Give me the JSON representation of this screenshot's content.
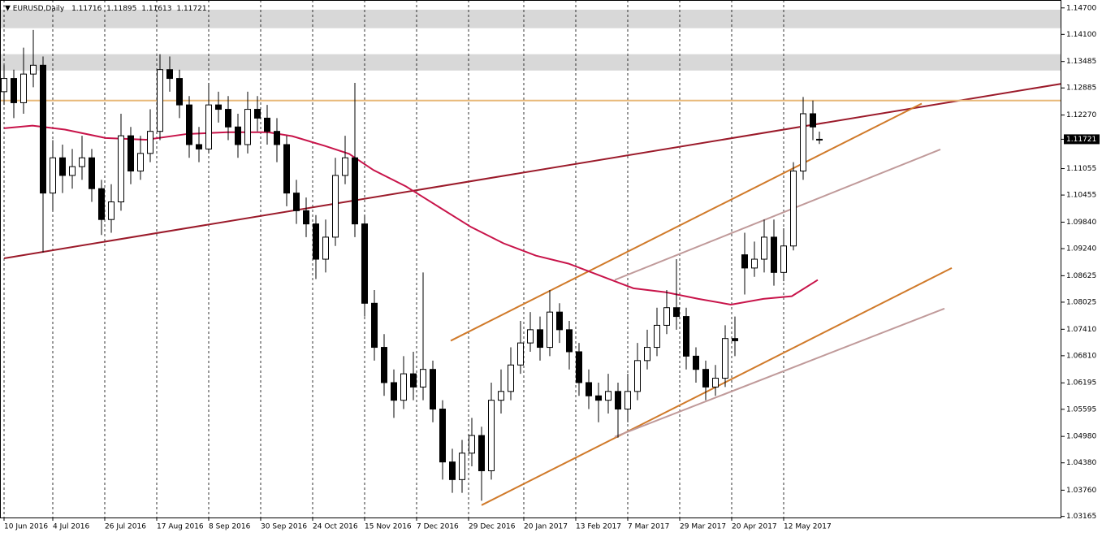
{
  "chart_data": {
    "type": "candlestick",
    "symbol": "EURUSD,Daily",
    "xlim": [
      -1.25,
      325.5
    ],
    "ylim": [
      1.0314,
      1.1488
    ],
    "xticks": [
      {
        "value": 0,
        "label": "10 Jun 2016"
      },
      {
        "value": 15,
        "label": "4 Jul 2016"
      },
      {
        "value": 31,
        "label": "26 Jul 2016"
      },
      {
        "value": 47,
        "label": "17 Aug 2016"
      },
      {
        "value": 63,
        "label": "8 Sep 2016"
      },
      {
        "value": 79,
        "label": "30 Sep 2016"
      },
      {
        "value": 95,
        "label": "24 Oct 2016"
      },
      {
        "value": 111,
        "label": "15 Nov 2016"
      },
      {
        "value": 127,
        "label": "7 Dec 2016"
      },
      {
        "value": 143,
        "label": "29 Dec 2016"
      },
      {
        "value": 160,
        "label": "20 Jan 2017"
      },
      {
        "value": 176,
        "label": "13 Feb 2017"
      },
      {
        "value": 192,
        "label": "7 Mar 2017"
      },
      {
        "value": 208,
        "label": "29 Mar 2017"
      },
      {
        "value": 224,
        "label": "20 Apr 2017"
      },
      {
        "value": 240,
        "label": "12 May 2017"
      }
    ],
    "yticks": [
      {
        "value": 1.147,
        "label": "1.14700"
      },
      {
        "value": 1.141,
        "label": "1.14100"
      },
      {
        "value": 1.13485,
        "label": "1.13485"
      },
      {
        "value": 1.12885,
        "label": "1.12885"
      },
      {
        "value": 1.1227,
        "label": "1.12270"
      },
      {
        "value": 1.11055,
        "label": "1.11055"
      },
      {
        "value": 1.10455,
        "label": "1.10455"
      },
      {
        "value": 1.0984,
        "label": "1.09840"
      },
      {
        "value": 1.0924,
        "label": "1.09240"
      },
      {
        "value": 1.08625,
        "label": "1.08625"
      },
      {
        "value": 1.08025,
        "label": "1.08025"
      },
      {
        "value": 1.0741,
        "label": "1.07410"
      },
      {
        "value": 1.0681,
        "label": "1.06810"
      },
      {
        "value": 1.06195,
        "label": "1.06195"
      },
      {
        "value": 1.05595,
        "label": "1.05595"
      },
      {
        "value": 1.0498,
        "label": "1.04980"
      },
      {
        "value": 1.0438,
        "label": "1.04380"
      },
      {
        "value": 1.0376,
        "label": "1.03760"
      },
      {
        "value": 1.03165,
        "label": "1.03165"
      }
    ],
    "current": {
      "value": 1.11721,
      "label": "1.11721"
    },
    "grid": true,
    "candles": {
      "x": [
        0,
        3,
        6,
        9,
        12,
        15,
        18,
        21,
        24,
        27,
        30,
        33,
        36,
        39,
        42,
        45,
        48,
        51,
        54,
        57,
        60,
        63,
        66,
        69,
        72,
        75,
        78,
        81,
        84,
        87,
        90,
        93,
        96,
        99,
        102,
        105,
        108,
        111,
        114,
        117,
        120,
        123,
        126,
        129,
        132,
        135,
        138,
        141,
        144,
        147,
        150,
        153,
        156,
        159,
        162,
        165,
        168,
        171,
        174,
        177,
        180,
        183,
        186,
        189,
        192,
        195,
        198,
        201,
        204,
        207,
        210,
        213,
        216,
        219,
        222,
        225,
        228,
        231,
        234,
        237,
        240,
        243,
        246,
        249,
        251
      ],
      "open": [
        1.128,
        1.131,
        1.1255,
        1.132,
        1.134,
        1.105,
        1.113,
        1.109,
        1.111,
        1.113,
        1.106,
        1.099,
        1.103,
        1.118,
        1.11,
        1.114,
        1.119,
        1.133,
        1.131,
        1.125,
        1.116,
        1.115,
        1.125,
        1.124,
        1.12,
        1.116,
        1.124,
        1.122,
        1.119,
        1.116,
        1.105,
        1.101,
        1.098,
        1.09,
        1.095,
        1.109,
        1.113,
        1.098,
        1.08,
        1.07,
        1.062,
        1.058,
        1.064,
        1.061,
        1.065,
        1.056,
        1.044,
        1.04,
        1.046,
        1.05,
        1.042,
        1.058,
        1.06,
        1.066,
        1.071,
        1.074,
        1.07,
        1.078,
        1.074,
        1.069,
        1.062,
        1.059,
        1.058,
        1.06,
        1.056,
        1.06,
        1.067,
        1.07,
        1.075,
        1.079,
        1.077,
        1.068,
        1.065,
        1.061,
        1.063,
        1.072,
        1.091,
        1.088,
        1.09,
        1.095,
        1.087,
        1.093,
        1.11,
        1.123,
        1.11716
      ],
      "high": [
        1.134,
        1.133,
        1.138,
        1.142,
        1.136,
        1.117,
        1.116,
        1.115,
        1.118,
        1.115,
        1.108,
        1.107,
        1.123,
        1.12,
        1.118,
        1.124,
        1.1365,
        1.136,
        1.133,
        1.127,
        1.12,
        1.13,
        1.128,
        1.127,
        1.123,
        1.128,
        1.127,
        1.125,
        1.122,
        1.118,
        1.108,
        1.104,
        1.1,
        1.099,
        1.113,
        1.118,
        1.13,
        1.1,
        1.083,
        1.073,
        1.065,
        1.068,
        1.069,
        1.087,
        1.067,
        1.058,
        1.047,
        1.049,
        1.054,
        1.052,
        1.062,
        1.065,
        1.07,
        1.076,
        1.078,
        1.077,
        1.083,
        1.08,
        1.076,
        1.071,
        1.065,
        1.062,
        1.064,
        1.062,
        1.064,
        1.071,
        1.074,
        1.079,
        1.083,
        1.09,
        1.079,
        1.07,
        1.067,
        1.066,
        1.075,
        1.077,
        1.096,
        1.094,
        1.099,
        1.099,
        1.097,
        1.112,
        1.1268,
        1.126,
        1.11895
      ],
      "low": [
        1.125,
        1.122,
        1.123,
        1.129,
        1.0915,
        1.101,
        1.105,
        1.106,
        1.108,
        1.103,
        1.0955,
        1.096,
        1.101,
        1.107,
        1.108,
        1.112,
        1.117,
        1.128,
        1.122,
        1.113,
        1.112,
        1.114,
        1.121,
        1.117,
        1.113,
        1.114,
        1.119,
        1.116,
        1.112,
        1.102,
        1.098,
        1.095,
        1.0855,
        1.087,
        1.093,
        1.107,
        1.095,
        1.077,
        1.067,
        1.059,
        1.054,
        1.056,
        1.058,
        1.058,
        1.053,
        1.04,
        1.037,
        1.037,
        1.043,
        1.0352,
        1.04,
        1.055,
        1.058,
        1.064,
        1.069,
        1.067,
        1.068,
        1.071,
        1.065,
        1.059,
        1.056,
        1.053,
        1.055,
        1.0495,
        1.053,
        1.058,
        1.065,
        1.068,
        1.073,
        1.074,
        1.065,
        1.062,
        1.058,
        1.059,
        1.061,
        1.068,
        1.082,
        1.086,
        1.087,
        1.084,
        1.085,
        1.092,
        1.108,
        1.117,
        1.11613
      ],
      "close": [
        1.131,
        1.1255,
        1.132,
        1.134,
        1.105,
        1.113,
        1.109,
        1.111,
        1.113,
        1.106,
        1.099,
        1.103,
        1.118,
        1.11,
        1.114,
        1.119,
        1.133,
        1.131,
        1.125,
        1.116,
        1.115,
        1.125,
        1.124,
        1.12,
        1.116,
        1.124,
        1.122,
        1.119,
        1.116,
        1.105,
        1.101,
        1.098,
        1.09,
        1.095,
        1.109,
        1.113,
        1.098,
        1.08,
        1.07,
        1.062,
        1.058,
        1.064,
        1.061,
        1.065,
        1.056,
        1.044,
        1.04,
        1.046,
        1.05,
        1.042,
        1.058,
        1.06,
        1.066,
        1.071,
        1.074,
        1.07,
        1.078,
        1.074,
        1.069,
        1.062,
        1.059,
        1.058,
        1.06,
        1.056,
        1.06,
        1.067,
        1.07,
        1.075,
        1.079,
        1.077,
        1.068,
        1.065,
        1.061,
        1.063,
        1.072,
        1.0715,
        1.088,
        1.09,
        1.095,
        1.087,
        1.093,
        1.11,
        1.123,
        1.12,
        1.11721
      ]
    },
    "moving_average": {
      "color": "#c8144a",
      "x": [
        0,
        8.75,
        18.75,
        31.25,
        43.75,
        56.25,
        68.75,
        81.25,
        88.75,
        98.75,
        106.25,
        113.75,
        123.75,
        133.75,
        143.75,
        153.75,
        163.75,
        173.75,
        183.75,
        193.75,
        203.75,
        213.75,
        223.75,
        233.75,
        242.5,
        250.5
      ],
      "values": [
        1.1197,
        1.1203,
        1.1194,
        1.1175,
        1.1171,
        1.1184,
        1.1188,
        1.1188,
        1.1179,
        1.1157,
        1.1139,
        1.1102,
        1.1065,
        1.1019,
        1.0973,
        1.0936,
        1.0908,
        1.089,
        1.0862,
        1.0834,
        1.0825,
        1.081,
        1.0797,
        1.081,
        1.0816,
        1.0853
      ]
    },
    "trendlines": [
      {
        "color": "#9b1a2a",
        "x": [
          0,
          325.5
        ],
        "values": [
          1.0902,
          1.1298
        ]
      },
      {
        "color": "#d07a2a",
        "x": [
          137.5,
          282.5
        ],
        "values": [
          1.0715,
          1.1253
        ]
      },
      {
        "color": "#d07a2a",
        "x": [
          147,
          291.75
        ],
        "values": [
          1.0342,
          1.088
        ]
      },
      {
        "color": "#c09a9a",
        "x": [
          188,
          288.25
        ],
        "values": [
          1.0853,
          1.1149
        ]
      },
      {
        "color": "#c09a9a",
        "x": [
          188,
          289.5
        ],
        "values": [
          1.0497,
          1.0788
        ]
      },
      {
        "color": "#e8b878",
        "x": [
          -1.25,
          325.5
        ],
        "values": [
          1.126,
          1.126
        ]
      }
    ],
    "zones": [
      {
        "color": "#d8d8d8",
        "values": [
          1.1424,
          1.1466
        ]
      },
      {
        "color": "#d8d8d8",
        "values": [
          1.1328,
          1.1365
        ]
      }
    ]
  }
}
